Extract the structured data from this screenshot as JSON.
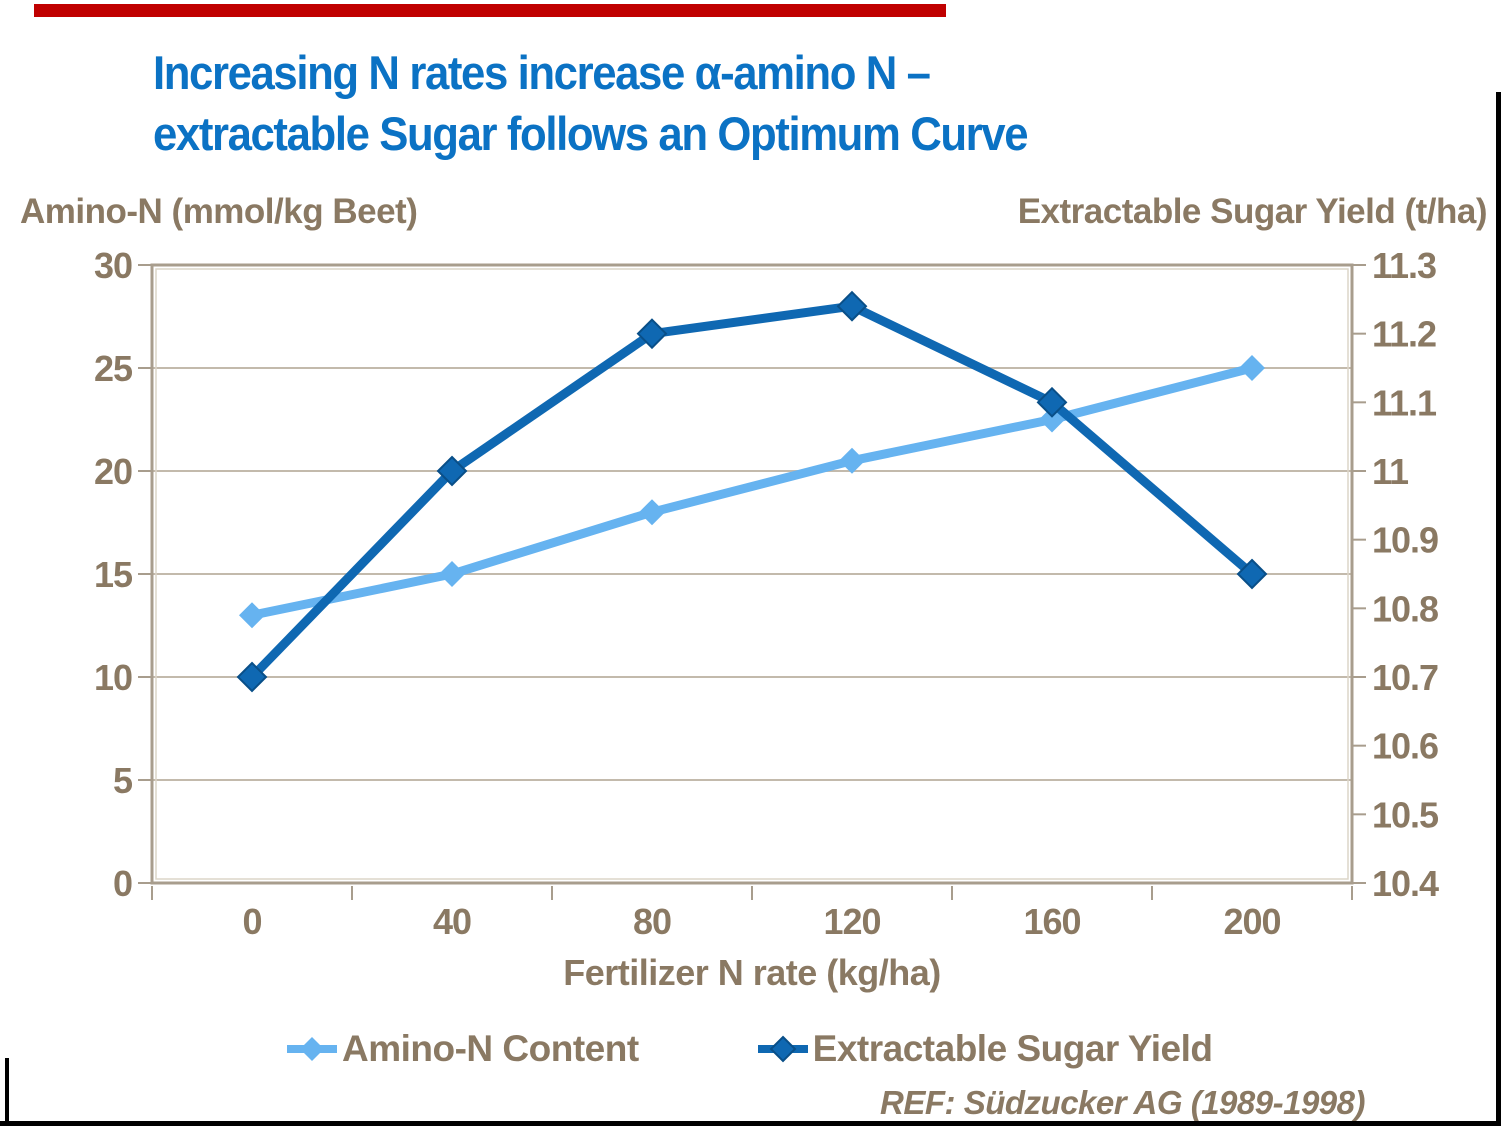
{
  "slide": {
    "title_line1": "Increasing N rates increase α-amino N –",
    "title_line2": "extractable Sugar follows an Optimum Curve",
    "title_color": "#0B72C4",
    "top_bar_color": "#C00000",
    "text_color": "#8A7963",
    "ref_note": "REF: Südzucker AG (1989-1998)"
  },
  "chart_data": {
    "type": "line",
    "x": [
      0,
      40,
      80,
      120,
      160,
      200
    ],
    "xlabel": "Fertilizer N rate (kg/ha)",
    "grid": true,
    "legend_position": "bottom",
    "left_axis": {
      "title": "Amino-N (mmol/kg Beet)",
      "min": 0,
      "max": 30,
      "ticks": [
        "0",
        "5",
        "10",
        "15",
        "20",
        "25",
        "30"
      ]
    },
    "right_axis": {
      "title": "Extractable Sugar Yield (t/ha)",
      "min": 10.4,
      "max": 11.3,
      "ticks": [
        "10.4",
        "10.5",
        "10.6",
        "10.7",
        "10.8",
        "10.9",
        "11",
        "11.1",
        "11.2",
        "11.3"
      ]
    },
    "series": [
      {
        "name": "Amino-N Content",
        "axis": "left",
        "color": "#66B3F0",
        "values": [
          13,
          15,
          18,
          20.5,
          22.5,
          25
        ]
      },
      {
        "name": "Extractable Sugar Yield",
        "axis": "right",
        "color": "#0F68B2",
        "marker_edge": "#094F88",
        "values": [
          10.7,
          11.0,
          11.2,
          11.24,
          11.1,
          10.85
        ]
      }
    ]
  }
}
